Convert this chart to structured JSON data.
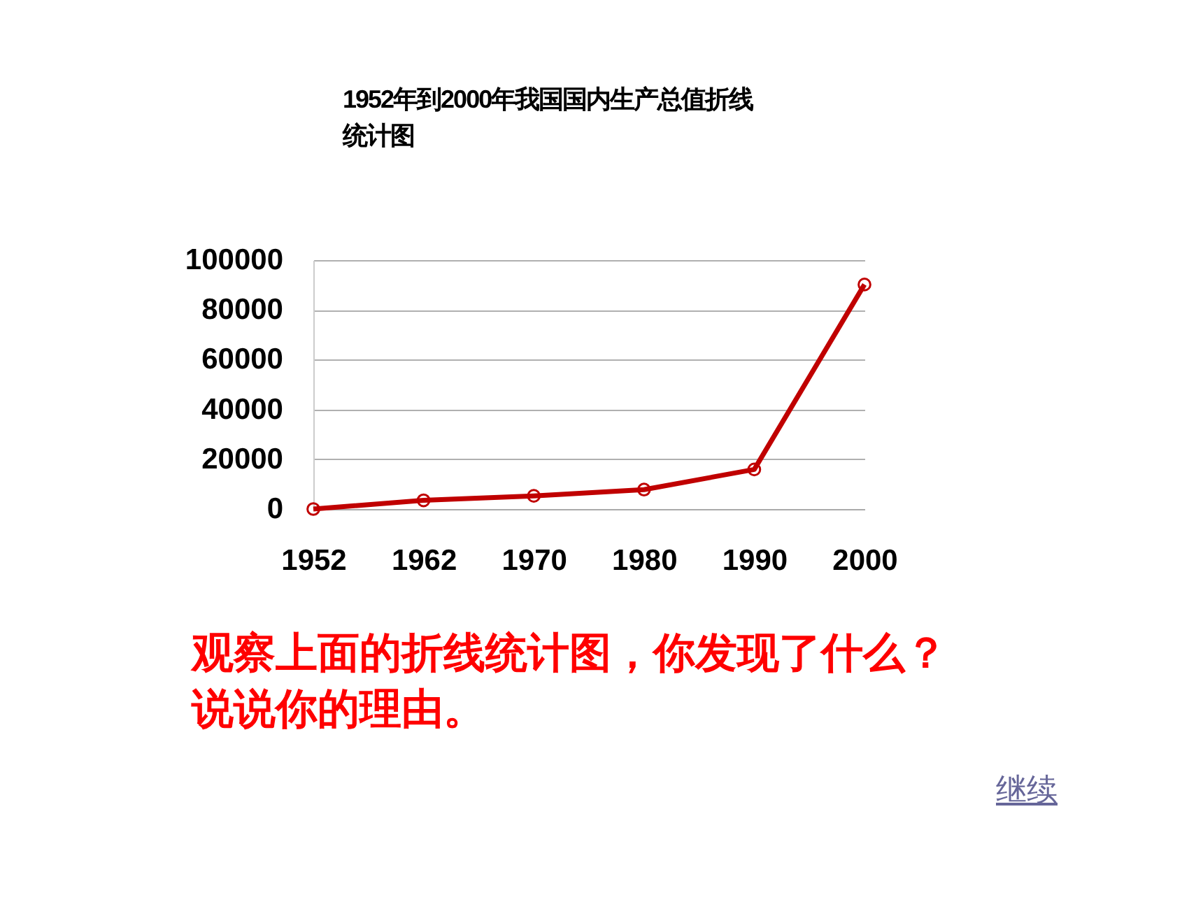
{
  "chart_data": {
    "type": "line",
    "title": "1952年到2000年我国国内生产总值折线统计图",
    "categories": [
      "1952",
      "1962",
      "1970",
      "1980",
      "1990",
      "2000"
    ],
    "series": [
      {
        "color": "#c00000",
        "values": [
          0,
          3500,
          5300,
          7800,
          15900,
          90200
        ]
      }
    ],
    "ylim": [
      0,
      100000
    ],
    "yticks": [
      0,
      20000,
      40000,
      60000,
      80000,
      100000
    ],
    "grid": "y",
    "marker": "circle",
    "line_style": "solid",
    "annotations": [
      "观察上面的折线统计图，你发现了什么？说说你的理由。",
      "继续"
    ]
  }
}
